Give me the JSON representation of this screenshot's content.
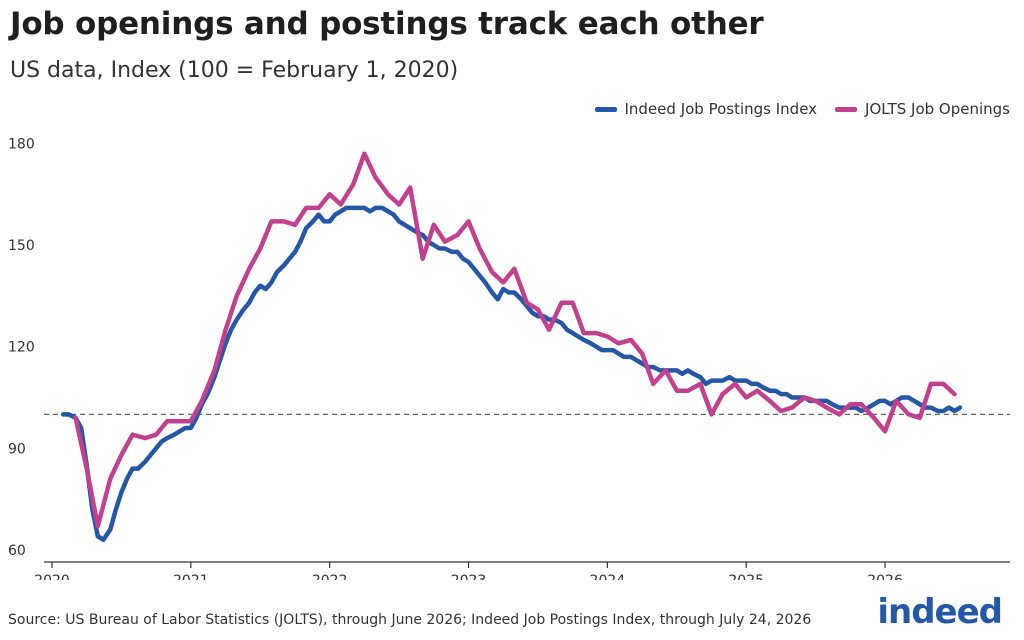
{
  "title": "Job openings and postings track each other",
  "subtitle": "US data, Index (100 = February 1, 2020)",
  "source": "Source: US Bureau of Labor Statistics (JOLTS), through June 2026; Indeed Job Postings Index, through July 24, 2026",
  "logo": "indeed",
  "colors": {
    "indeed": "#2557a7",
    "jolts": "#c1418f"
  },
  "chart_data": {
    "type": "line",
    "title": "Job openings and postings track each other",
    "subtitle": "US data, Index (100 = February 1, 2020)",
    "xlabel": "",
    "ylabel": "",
    "xlim": [
      2020.0,
      2026.9
    ],
    "ylim": [
      57,
      184
    ],
    "yticks": [
      60,
      90,
      120,
      150,
      180
    ],
    "xticks": [
      "2020",
      "2021",
      "2022",
      "2023",
      "2024",
      "2025",
      "2026"
    ],
    "reference_line": 100,
    "grid": false,
    "legend": "top-right",
    "series": [
      {
        "name": "Indeed Job Postings Index",
        "color": "#2557a7",
        "points": [
          [
            2020.08,
            100
          ],
          [
            2020.12,
            100
          ],
          [
            2020.17,
            99
          ],
          [
            2020.21,
            96
          ],
          [
            2020.25,
            85
          ],
          [
            2020.29,
            72
          ],
          [
            2020.33,
            64
          ],
          [
            2020.37,
            63
          ],
          [
            2020.42,
            66
          ],
          [
            2020.46,
            72
          ],
          [
            2020.5,
            77
          ],
          [
            2020.54,
            81
          ],
          [
            2020.58,
            84
          ],
          [
            2020.62,
            84
          ],
          [
            2020.67,
            86
          ],
          [
            2020.71,
            88
          ],
          [
            2020.75,
            90
          ],
          [
            2020.79,
            92
          ],
          [
            2020.83,
            93
          ],
          [
            2020.88,
            94
          ],
          [
            2020.92,
            95
          ],
          [
            2020.96,
            96
          ],
          [
            2021.0,
            96
          ],
          [
            2021.04,
            99
          ],
          [
            2021.08,
            103
          ],
          [
            2021.12,
            106
          ],
          [
            2021.17,
            111
          ],
          [
            2021.21,
            116
          ],
          [
            2021.25,
            121
          ],
          [
            2021.29,
            125
          ],
          [
            2021.33,
            128
          ],
          [
            2021.38,
            131
          ],
          [
            2021.42,
            133
          ],
          [
            2021.46,
            136
          ],
          [
            2021.5,
            138
          ],
          [
            2021.54,
            137
          ],
          [
            2021.58,
            139
          ],
          [
            2021.62,
            142
          ],
          [
            2021.67,
            144
          ],
          [
            2021.71,
            146
          ],
          [
            2021.75,
            148
          ],
          [
            2021.79,
            151
          ],
          [
            2021.83,
            155
          ],
          [
            2021.88,
            157
          ],
          [
            2021.92,
            159
          ],
          [
            2021.96,
            157
          ],
          [
            2022.0,
            157
          ],
          [
            2022.04,
            159
          ],
          [
            2022.08,
            160
          ],
          [
            2022.12,
            161
          ],
          [
            2022.17,
            161
          ],
          [
            2022.21,
            161
          ],
          [
            2022.25,
            161
          ],
          [
            2022.29,
            160
          ],
          [
            2022.33,
            161
          ],
          [
            2022.38,
            161
          ],
          [
            2022.42,
            160
          ],
          [
            2022.46,
            159
          ],
          [
            2022.5,
            157
          ],
          [
            2022.54,
            156
          ],
          [
            2022.58,
            155
          ],
          [
            2022.62,
            154
          ],
          [
            2022.67,
            153
          ],
          [
            2022.71,
            151
          ],
          [
            2022.75,
            150
          ],
          [
            2022.79,
            149
          ],
          [
            2022.83,
            149
          ],
          [
            2022.88,
            148
          ],
          [
            2022.92,
            148
          ],
          [
            2022.96,
            146
          ],
          [
            2023.0,
            145
          ],
          [
            2023.04,
            143
          ],
          [
            2023.08,
            141
          ],
          [
            2023.12,
            139
          ],
          [
            2023.17,
            136
          ],
          [
            2023.21,
            134
          ],
          [
            2023.25,
            137
          ],
          [
            2023.29,
            136
          ],
          [
            2023.33,
            136
          ],
          [
            2023.38,
            134
          ],
          [
            2023.42,
            132
          ],
          [
            2023.46,
            130
          ],
          [
            2023.5,
            129
          ],
          [
            2023.54,
            129
          ],
          [
            2023.58,
            128
          ],
          [
            2023.62,
            128
          ],
          [
            2023.67,
            127
          ],
          [
            2023.71,
            125
          ],
          [
            2023.75,
            124
          ],
          [
            2023.79,
            123
          ],
          [
            2023.83,
            122
          ],
          [
            2023.88,
            121
          ],
          [
            2023.92,
            120
          ],
          [
            2023.96,
            119
          ],
          [
            2024.0,
            119
          ],
          [
            2024.04,
            119
          ],
          [
            2024.08,
            118
          ],
          [
            2024.12,
            117
          ],
          [
            2024.17,
            117
          ],
          [
            2024.21,
            116
          ],
          [
            2024.25,
            115
          ],
          [
            2024.29,
            114
          ],
          [
            2024.33,
            114
          ],
          [
            2024.38,
            113
          ],
          [
            2024.42,
            113
          ],
          [
            2024.46,
            113
          ],
          [
            2024.5,
            113
          ],
          [
            2024.54,
            112
          ],
          [
            2024.58,
            113
          ],
          [
            2024.62,
            112
          ],
          [
            2024.67,
            111
          ],
          [
            2024.71,
            109
          ],
          [
            2024.75,
            110
          ],
          [
            2024.79,
            110
          ],
          [
            2024.83,
            110
          ],
          [
            2024.88,
            111
          ],
          [
            2024.92,
            110
          ],
          [
            2024.96,
            110
          ],
          [
            2025.0,
            110
          ],
          [
            2025.04,
            109
          ],
          [
            2025.08,
            109
          ],
          [
            2025.12,
            108
          ],
          [
            2025.17,
            107
          ],
          [
            2025.21,
            107
          ],
          [
            2025.25,
            106
          ],
          [
            2025.29,
            106
          ],
          [
            2025.33,
            105
          ],
          [
            2025.38,
            105
          ],
          [
            2025.42,
            105
          ],
          [
            2025.46,
            104
          ],
          [
            2025.5,
            104
          ],
          [
            2025.54,
            104
          ],
          [
            2025.58,
            104
          ],
          [
            2025.62,
            103
          ],
          [
            2025.67,
            102
          ],
          [
            2025.71,
            102
          ],
          [
            2025.75,
            102
          ],
          [
            2025.79,
            102
          ],
          [
            2025.83,
            101
          ],
          [
            2025.88,
            102
          ],
          [
            2025.92,
            103
          ],
          [
            2025.96,
            104
          ],
          [
            2026.0,
            104
          ],
          [
            2026.04,
            103
          ],
          [
            2026.08,
            104
          ],
          [
            2026.12,
            105
          ],
          [
            2026.17,
            105
          ],
          [
            2026.21,
            104
          ],
          [
            2026.25,
            103
          ],
          [
            2026.29,
            102
          ],
          [
            2026.33,
            102
          ],
          [
            2026.38,
            101
          ],
          [
            2026.42,
            101
          ],
          [
            2026.46,
            102
          ],
          [
            2026.5,
            101
          ],
          [
            2026.54,
            102
          ]
        ]
      },
      {
        "name": "JOLTS Job Openings",
        "color": "#c1418f",
        "points": [
          [
            2020.17,
            99
          ],
          [
            2020.25,
            84
          ],
          [
            2020.33,
            67
          ],
          [
            2020.42,
            81
          ],
          [
            2020.5,
            88
          ],
          [
            2020.58,
            94
          ],
          [
            2020.67,
            93
          ],
          [
            2020.75,
            94
          ],
          [
            2020.83,
            98
          ],
          [
            2020.92,
            98
          ],
          [
            2021.0,
            98
          ],
          [
            2021.08,
            104
          ],
          [
            2021.17,
            113
          ],
          [
            2021.25,
            125
          ],
          [
            2021.33,
            135
          ],
          [
            2021.42,
            143
          ],
          [
            2021.5,
            149
          ],
          [
            2021.58,
            157
          ],
          [
            2021.67,
            157
          ],
          [
            2021.75,
            156
          ],
          [
            2021.83,
            161
          ],
          [
            2021.92,
            161
          ],
          [
            2022.0,
            165
          ],
          [
            2022.08,
            162
          ],
          [
            2022.17,
            168
          ],
          [
            2022.25,
            177
          ],
          [
            2022.33,
            170
          ],
          [
            2022.42,
            165
          ],
          [
            2022.5,
            162
          ],
          [
            2022.58,
            167
          ],
          [
            2022.67,
            146
          ],
          [
            2022.75,
            156
          ],
          [
            2022.83,
            151
          ],
          [
            2022.92,
            153
          ],
          [
            2023.0,
            157
          ],
          [
            2023.08,
            149
          ],
          [
            2023.17,
            142
          ],
          [
            2023.25,
            139
          ],
          [
            2023.33,
            143
          ],
          [
            2023.42,
            133
          ],
          [
            2023.5,
            131
          ],
          [
            2023.58,
            125
          ],
          [
            2023.67,
            133
          ],
          [
            2023.75,
            133
          ],
          [
            2023.83,
            124
          ],
          [
            2023.92,
            124
          ],
          [
            2024.0,
            123
          ],
          [
            2024.08,
            121
          ],
          [
            2024.17,
            122
          ],
          [
            2024.25,
            118
          ],
          [
            2024.33,
            109
          ],
          [
            2024.42,
            113
          ],
          [
            2024.5,
            107
          ],
          [
            2024.58,
            107
          ],
          [
            2024.67,
            109
          ],
          [
            2024.75,
            100
          ],
          [
            2024.83,
            106
          ],
          [
            2024.92,
            109
          ],
          [
            2025.0,
            105
          ],
          [
            2025.08,
            107
          ],
          [
            2025.17,
            104
          ],
          [
            2025.25,
            101
          ],
          [
            2025.33,
            102
          ],
          [
            2025.42,
            105
          ],
          [
            2025.5,
            104
          ],
          [
            2025.58,
            102
          ],
          [
            2025.67,
            100
          ],
          [
            2025.75,
            103
          ],
          [
            2025.83,
            103
          ],
          [
            2025.92,
            99
          ],
          [
            2026.0,
            95
          ],
          [
            2026.08,
            104
          ],
          [
            2026.17,
            100
          ],
          [
            2026.25,
            99
          ],
          [
            2026.33,
            109
          ],
          [
            2026.42,
            109
          ],
          [
            2026.5,
            106
          ]
        ]
      }
    ]
  }
}
